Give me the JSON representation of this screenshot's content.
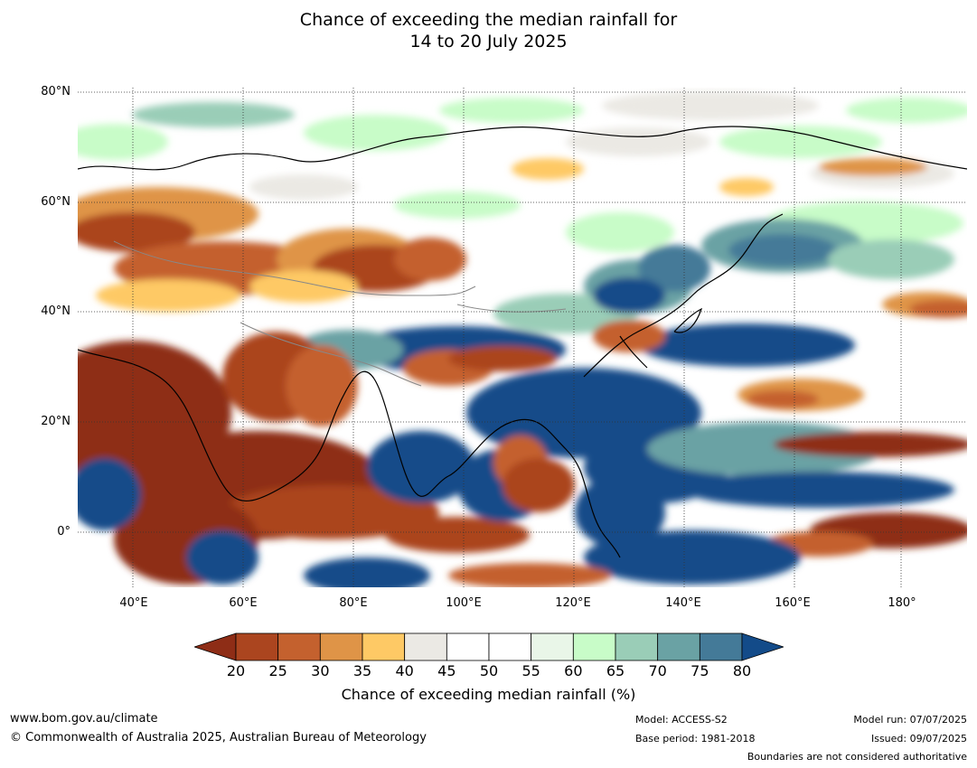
{
  "title_line1": "Chance of exceeding the median rainfall for",
  "title_line2": "14 to 20 July 2025",
  "map": {
    "lat_range": [
      -10,
      80
    ],
    "lon_range": [
      30,
      191
    ],
    "lat_labels": [
      "80°N",
      "60°N",
      "40°N",
      "20°N",
      "0°"
    ],
    "lon_labels": [
      "40°E",
      "60°E",
      "80°E",
      "100°E",
      "120°E",
      "140°E",
      "160°E",
      "180°"
    ]
  },
  "colorbar": {
    "ticks": [
      "20",
      "25",
      "30",
      "35",
      "40",
      "45",
      "50",
      "55",
      "60",
      "65",
      "70",
      "75",
      "80"
    ],
    "colors": [
      "#8e2d16",
      "#ab451f",
      "#c4612e",
      "#df9447",
      "#fec965",
      "#ebe9e4",
      "#ffffff",
      "#ffffff",
      "#e9f6e8",
      "#c8fcc8",
      "#9acdb7",
      "#6aa2a4",
      "#447a98",
      "#134b89"
    ],
    "label": "Chance of exceeding median rainfall (%)"
  },
  "footer": {
    "url": "www.bom.gov.au/climate",
    "copyright": "© Commonwealth of Australia 2025, Australian Bureau of Meteorology",
    "model": "Model: ACCESS-S2",
    "base_period": "Base period: 1981-2018",
    "model_run": "Model run: 07/07/2025",
    "issued": "Issued: 09/07/2025",
    "disclaimer": "Boundaries are not considered authoritative"
  }
}
